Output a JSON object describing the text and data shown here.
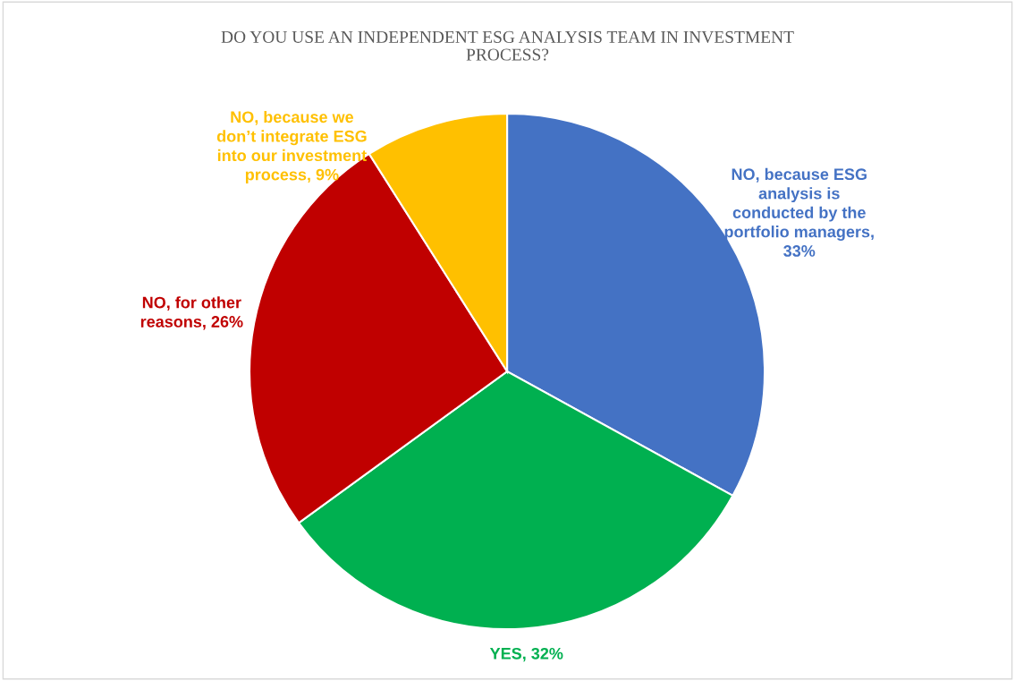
{
  "chart_data": {
    "type": "pie",
    "title": "DO YOU USE AN INDEPENDENT ESG ANALYSIS TEAM IN INVESTMENT PROCESS?",
    "categories": [
      "NO, because ESG analysis is conducted by the portfolio managers, 33%",
      "YES, 32%",
      "NO, for other reasons, 26%",
      "NO, because we don’t integrate ESG into our investment process, 9%"
    ],
    "values": [
      33,
      32,
      26,
      9
    ],
    "colors": [
      "#4472c4",
      "#00b050",
      "#c00000",
      "#ffc000"
    ]
  }
}
